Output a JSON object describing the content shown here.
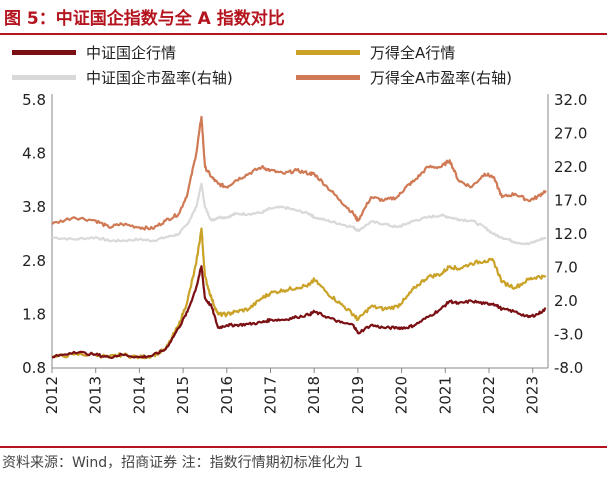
{
  "header": {
    "title": "图 5：中证国企指数与全 A 指数对比"
  },
  "footer": {
    "source": "资料来源：Wind，招商证券    注：指数行情期初标准化为 1"
  },
  "colors": {
    "title": "#b4141e",
    "csoe_index": "#7a0f14",
    "wind_a_index": "#c9a227",
    "csoe_pe": "#d9d9d9",
    "wind_a_pe": "#cf7a55"
  },
  "chart_data": {
    "type": "line",
    "title": "",
    "legend_position": "top",
    "grid": false,
    "x_ticks": [
      "2012",
      "2013",
      "2014",
      "2015",
      "2016",
      "2017",
      "2018",
      "2019",
      "2020",
      "2021",
      "2022",
      "2023"
    ],
    "y_left": {
      "ticks": [
        "0.8",
        "1.8",
        "2.8",
        "3.8",
        "4.8",
        "5.8"
      ],
      "range": [
        0.8,
        5.8
      ]
    },
    "y_right": {
      "ticks": [
        "-8.0",
        "-3.0",
        "2.0",
        "7.0",
        "12.0",
        "17.0",
        "22.0",
        "27.0",
        "32.0"
      ],
      "range": [
        -8.0,
        32.0
      ]
    },
    "x": [
      2012.0,
      2012.5,
      2013.0,
      2013.3,
      2013.6,
      2014.0,
      2014.3,
      2014.6,
      2014.9,
      2015.1,
      2015.3,
      2015.42,
      2015.5,
      2015.65,
      2015.8,
      2016.0,
      2016.2,
      2016.5,
      2016.8,
      2017.0,
      2017.3,
      2017.6,
      2017.9,
      2018.0,
      2018.3,
      2018.6,
      2018.9,
      2019.0,
      2019.3,
      2019.6,
      2019.9,
      2020.1,
      2020.3,
      2020.6,
      2020.9,
      2021.1,
      2021.3,
      2021.6,
      2021.9,
      2022.1,
      2022.3,
      2022.6,
      2022.9,
      2023.1,
      2023.3
    ],
    "series": [
      {
        "name": "中证国企行情",
        "axis": "left",
        "color_key": "csoe_index",
        "values": [
          1.0,
          1.1,
          1.05,
          1.0,
          1.05,
          1.0,
          1.03,
          1.15,
          1.55,
          1.85,
          2.3,
          2.7,
          2.1,
          1.95,
          1.55,
          1.6,
          1.6,
          1.62,
          1.65,
          1.7,
          1.7,
          1.75,
          1.8,
          1.85,
          1.75,
          1.65,
          1.6,
          1.45,
          1.6,
          1.55,
          1.55,
          1.55,
          1.6,
          1.75,
          1.9,
          2.05,
          2.0,
          2.05,
          2.0,
          2.0,
          1.9,
          1.85,
          1.75,
          1.8,
          1.9
        ]
      },
      {
        "name": "万得全A行情",
        "axis": "left",
        "color_key": "wind_a_index",
        "values": [
          1.0,
          1.05,
          1.05,
          1.0,
          1.05,
          1.0,
          1.03,
          1.15,
          1.6,
          2.05,
          2.75,
          3.4,
          2.5,
          2.1,
          1.8,
          1.8,
          1.85,
          1.9,
          2.1,
          2.2,
          2.25,
          2.3,
          2.35,
          2.45,
          2.2,
          2.0,
          1.8,
          1.7,
          1.95,
          1.9,
          1.95,
          2.1,
          2.3,
          2.5,
          2.55,
          2.7,
          2.65,
          2.75,
          2.8,
          2.8,
          2.4,
          2.3,
          2.45,
          2.5,
          2.5
        ]
      },
      {
        "name": "中证国企市盈率(右轴)",
        "axis": "right",
        "color_key": "csoe_pe",
        "values": [
          11.5,
          11.2,
          11.5,
          11.0,
          11.0,
          11.2,
          11.0,
          11.5,
          12.0,
          13.5,
          16.0,
          19.5,
          16.0,
          14.0,
          14.5,
          14.5,
          15.0,
          15.0,
          15.2,
          15.8,
          16.0,
          15.5,
          15.0,
          14.5,
          14.0,
          13.5,
          13.0,
          12.5,
          13.8,
          13.5,
          13.0,
          13.5,
          14.0,
          14.5,
          14.8,
          14.5,
          14.2,
          14.0,
          13.0,
          12.0,
          11.5,
          10.8,
          10.5,
          11.0,
          11.5
        ]
      },
      {
        "name": "万得全A市盈率(右轴)",
        "axis": "right",
        "color_key": "wind_a_pe",
        "values": [
          13.5,
          14.5,
          14.0,
          13.0,
          13.5,
          13.0,
          12.8,
          14.0,
          15.0,
          18.0,
          24.0,
          29.5,
          22.0,
          20.5,
          19.5,
          19.0,
          20.0,
          21.0,
          22.0,
          21.5,
          21.0,
          21.5,
          21.0,
          21.0,
          19.0,
          17.0,
          15.0,
          14.0,
          17.5,
          17.0,
          17.5,
          19.0,
          20.0,
          22.0,
          22.0,
          23.0,
          20.0,
          19.0,
          21.0,
          20.5,
          17.5,
          18.0,
          17.0,
          17.5,
          18.5
        ]
      }
    ]
  }
}
